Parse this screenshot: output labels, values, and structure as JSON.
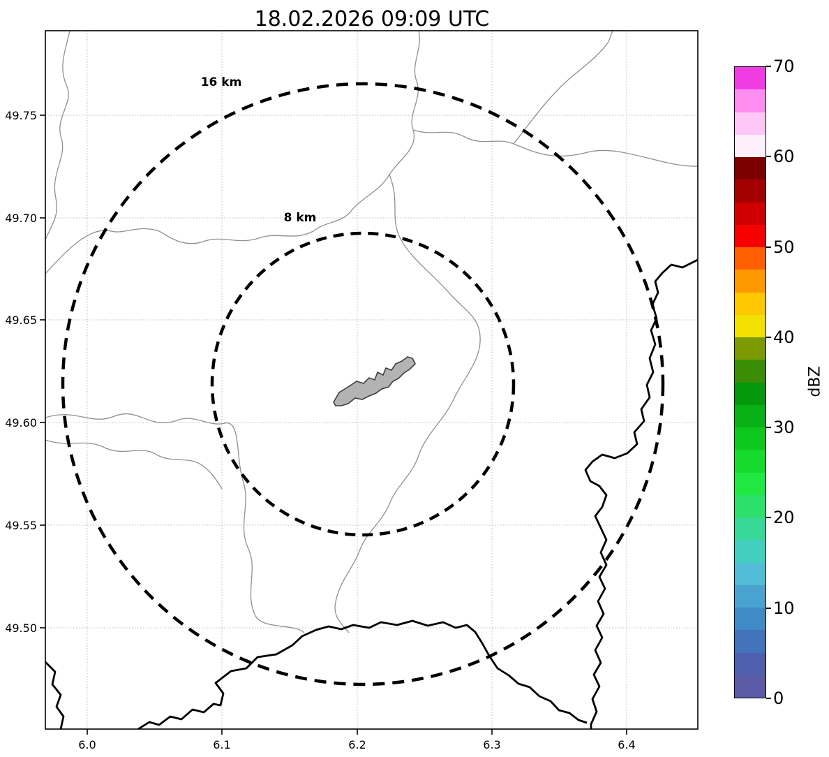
{
  "title": "18.02.2026 09:09 UTC",
  "axes": {
    "x_ticks": [
      "6.0",
      "6.1",
      "6.2",
      "6.3",
      "6.4"
    ],
    "y_ticks": [
      "49.75",
      "49.70",
      "49.65",
      "49.60",
      "49.55",
      "49.50"
    ]
  },
  "rings": {
    "outer_label": "16 km",
    "inner_label": "8 km"
  },
  "colorbar": {
    "label": "dBZ",
    "tick_labels": [
      "70",
      "60",
      "50",
      "40",
      "30",
      "20",
      "10",
      "0"
    ],
    "colors_bottom_to_top": [
      "#5b5aa6",
      "#4f5fae",
      "#4273bb",
      "#3f8ac7",
      "#4aa2d1",
      "#52bcd6",
      "#42cfc0",
      "#37d898",
      "#2ce06b",
      "#21e743",
      "#16da2e",
      "#0ec71f",
      "#08b116",
      "#04990c",
      "#3a8d05",
      "#7e9a03",
      "#f2e000",
      "#ffc800",
      "#ff9900",
      "#ff5f00",
      "#f70000",
      "#d10000",
      "#a50000",
      "#7b0000",
      "#fdeffc",
      "#fec7f6",
      "#fd8eef",
      "#f13ce3"
    ]
  },
  "map": {
    "city_fill": "#b3b3b3",
    "river_color": "#8f8f8f",
    "border_color": "#000000"
  },
  "chart_data": {
    "type": "map",
    "title": "18.02.2026 09:09 UTC",
    "xlabel": "",
    "ylabel": "",
    "xlim": [
      5.97,
      6.45
    ],
    "ylim": [
      49.45,
      49.79
    ],
    "x_ticks": [
      6.0,
      6.1,
      6.2,
      6.3,
      6.4
    ],
    "y_ticks": [
      49.5,
      49.55,
      49.6,
      49.65,
      49.7,
      49.75
    ],
    "range_rings_km": [
      8,
      16
    ],
    "ring_center": {
      "lon": 6.204,
      "lat": 49.619
    },
    "radar_echoes": "none visible (no dBZ shading on map)",
    "colorbar": {
      "label": "dBZ",
      "min": 0,
      "max": 70,
      "ticks": [
        0,
        10,
        20,
        30,
        40,
        50,
        60,
        70
      ],
      "step_dbz": 2.5
    }
  }
}
